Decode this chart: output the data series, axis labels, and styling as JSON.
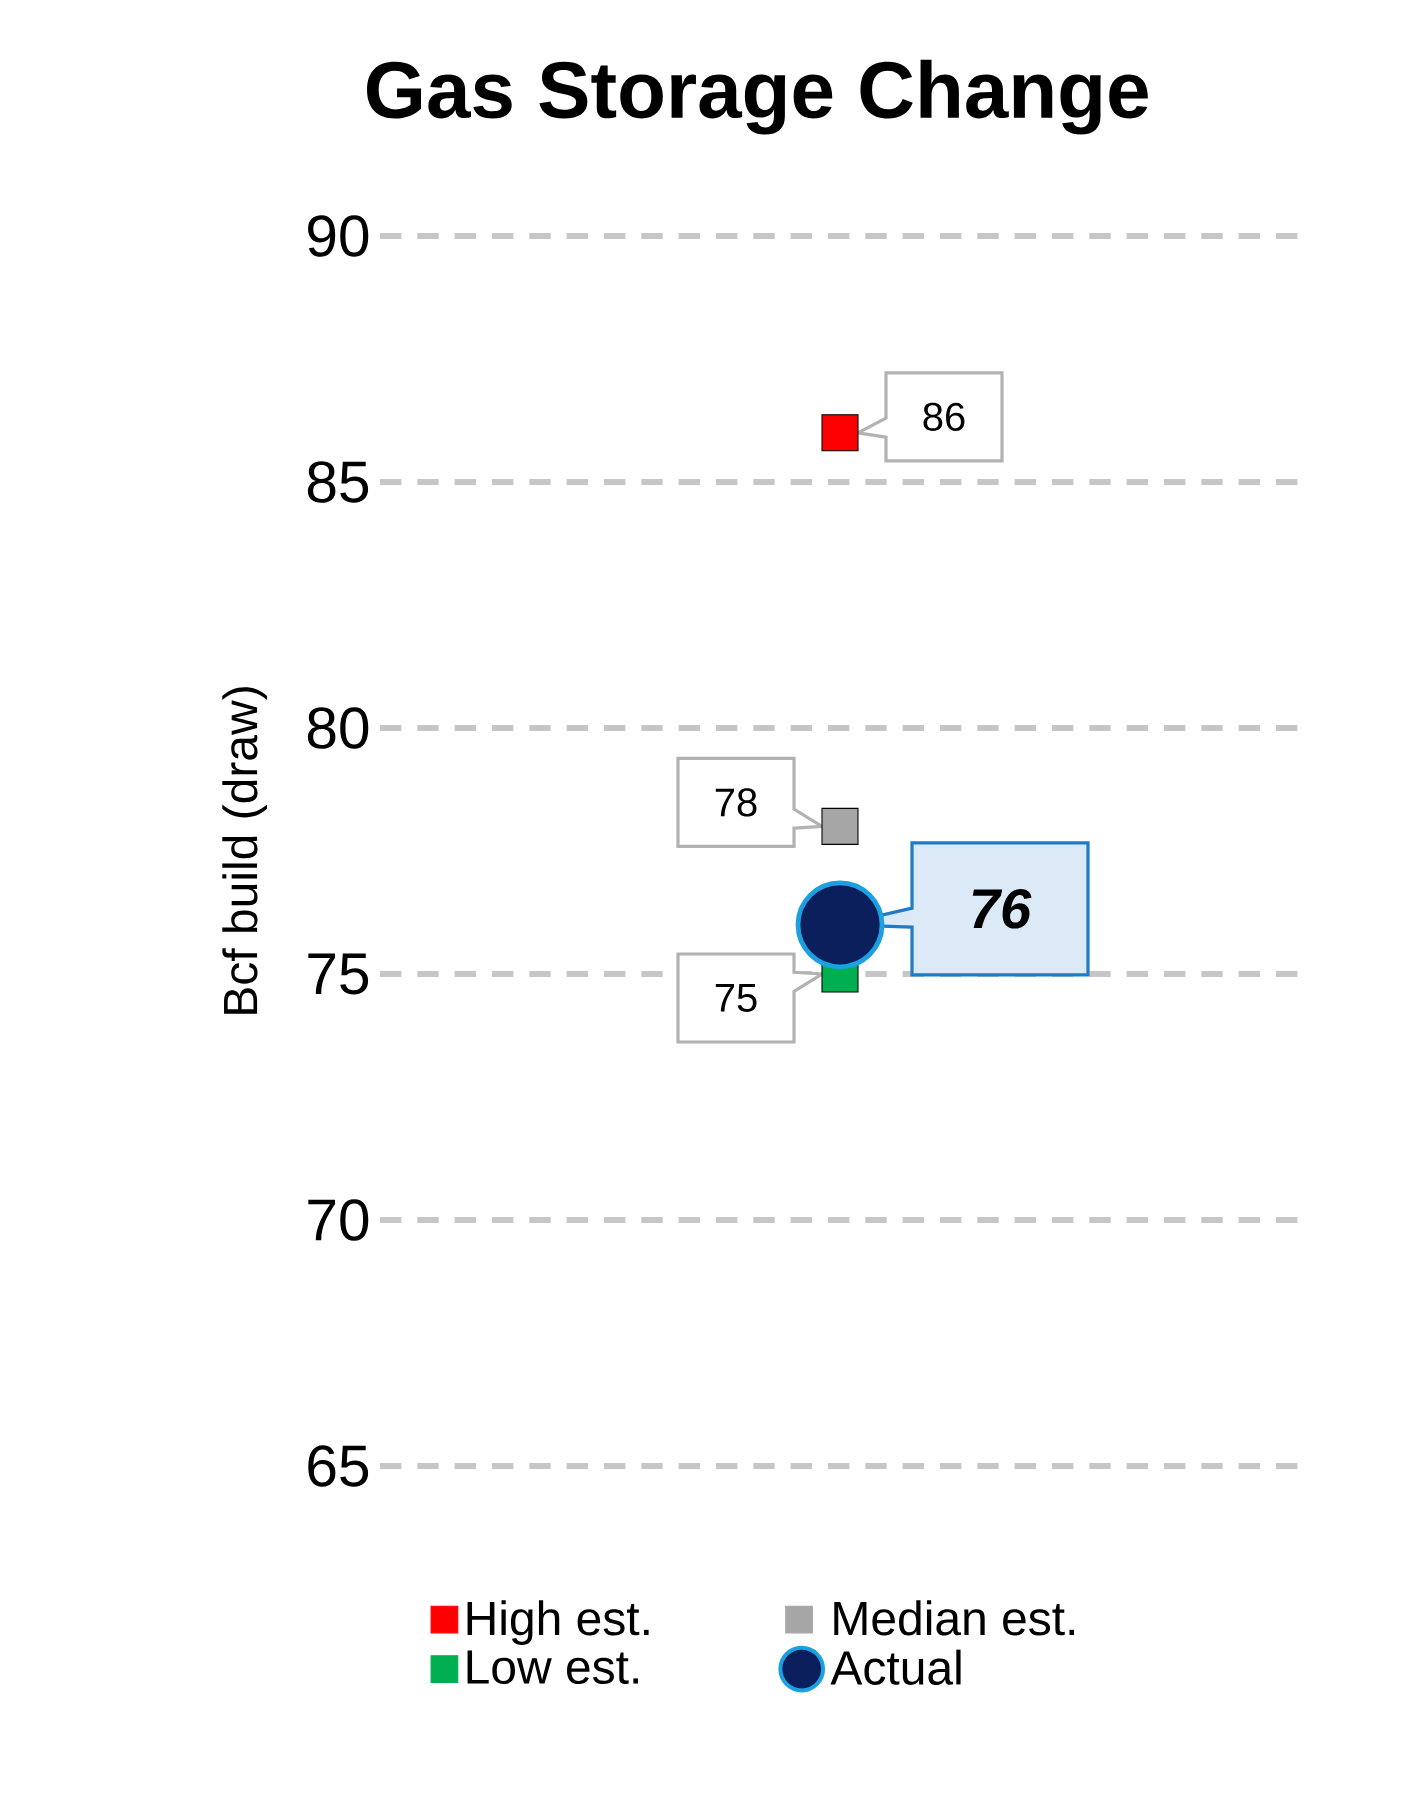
{
  "chart_data": {
    "type": "scatter",
    "title": "Gas Storage Change",
    "ylabel": "Bcf build (draw)",
    "categories": [
      null
    ],
    "series": [
      {
        "name": "High est.",
        "color": "#ff0000",
        "marker": "square",
        "values": [
          86
        ]
      },
      {
        "name": "Median est.",
        "color": "#a6a6a6",
        "marker": "square",
        "values": [
          78
        ]
      },
      {
        "name": "Low est.",
        "color": "#00b050",
        "marker": "square",
        "values": [
          75
        ]
      },
      {
        "name": "Actual",
        "color": "#0b1f5c",
        "marker": "circle",
        "values": [
          76
        ]
      }
    ],
    "ylim": [
      65,
      90
    ],
    "yticks": [
      65,
      70,
      75,
      80,
      85,
      90
    ],
    "grid": "y",
    "legend": "bottom",
    "data_labels": true
  }
}
